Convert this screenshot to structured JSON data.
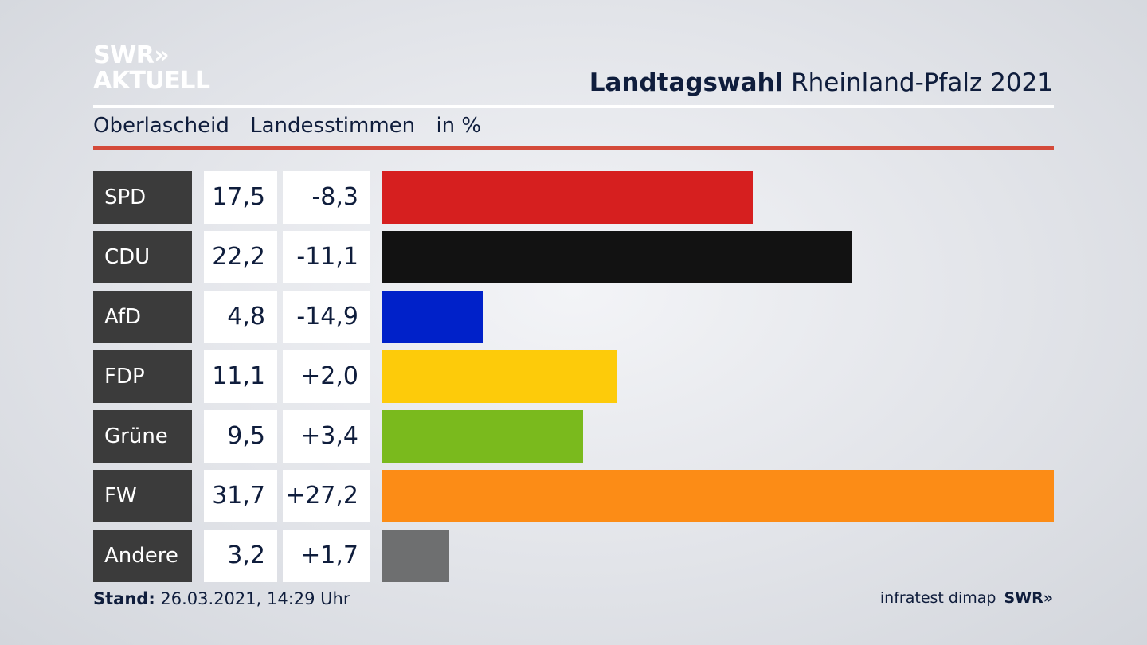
{
  "brand": {
    "line1": "SWR»",
    "line2": "AKTUELL"
  },
  "header": {
    "title_bold": "Landtagswahl",
    "title_rest": " Rheinland-Pfalz 2021"
  },
  "subheader": {
    "place": "Oberlascheid",
    "type": "Landesstimmen",
    "unit": "in %"
  },
  "footer": {
    "stand_label": "Stand:",
    "stand_value": " 26.03.2021, 14:29 Uhr",
    "source": "infratest dimap",
    "source_brand": "SWR»"
  },
  "colors": {
    "accent_red_line": "#d44a3a"
  },
  "chart_data": {
    "type": "bar",
    "categories": [
      "SPD",
      "CDU",
      "AfD",
      "FDP",
      "Grüne",
      "FW",
      "Andere"
    ],
    "values": [
      17.5,
      22.2,
      4.8,
      11.1,
      9.5,
      31.7,
      3.2
    ],
    "values_text": [
      "17,5",
      "22,2",
      "4,8",
      "11,1",
      "9,5",
      "31,7",
      "3,2"
    ],
    "diff_text": [
      "-8,3",
      "-11,1",
      "-14,9",
      "+2,0",
      "+3,4",
      "+27,2",
      "+1,7"
    ],
    "diffs": [
      -8.3,
      -11.1,
      -14.9,
      2.0,
      3.4,
      27.2,
      1.7
    ],
    "colors": [
      "#d61f1f",
      "#121212",
      "#0021c9",
      "#fdcb0a",
      "#7aba1d",
      "#fc8c16",
      "#6e6f70"
    ],
    "ylabel": "in %",
    "ylim": [
      0,
      31.7
    ]
  }
}
